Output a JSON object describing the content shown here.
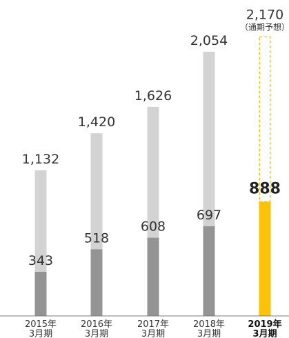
{
  "chart_data": {
    "type": "bar",
    "categories": [
      {
        "year": "2015年",
        "month": "3月期"
      },
      {
        "year": "2016年",
        "month": "3月期"
      },
      {
        "year": "2017年",
        "month": "3月期"
      },
      {
        "year": "2018年",
        "month": "3月期"
      },
      {
        "year": "2019年",
        "month": "3月期"
      }
    ],
    "totals": [
      {
        "value": 1132,
        "label": "1,132"
      },
      {
        "value": 1420,
        "label": "1,420"
      },
      {
        "value": 1626,
        "label": "1,626"
      },
      {
        "value": 2054,
        "label": "2,054"
      },
      {
        "value": 2170,
        "label": "2,170",
        "note": "（通期予想）",
        "forecast": true
      }
    ],
    "parts": [
      {
        "value": 343,
        "label": "343"
      },
      {
        "value": 518,
        "label": "518"
      },
      {
        "value": 608,
        "label": "608"
      },
      {
        "value": 697,
        "label": "697"
      },
      {
        "value": 888,
        "label": "888",
        "highlight": true
      }
    ],
    "highlight_index": 4,
    "ylim": [
      0,
      2400
    ],
    "grid": false,
    "colors": {
      "total_bar": "#d3d3d3",
      "part_bar": "#949494",
      "highlight_bar": "#fbc20a",
      "forecast_outline": "#fbc20a",
      "baseline": "#7a7a7a"
    }
  }
}
